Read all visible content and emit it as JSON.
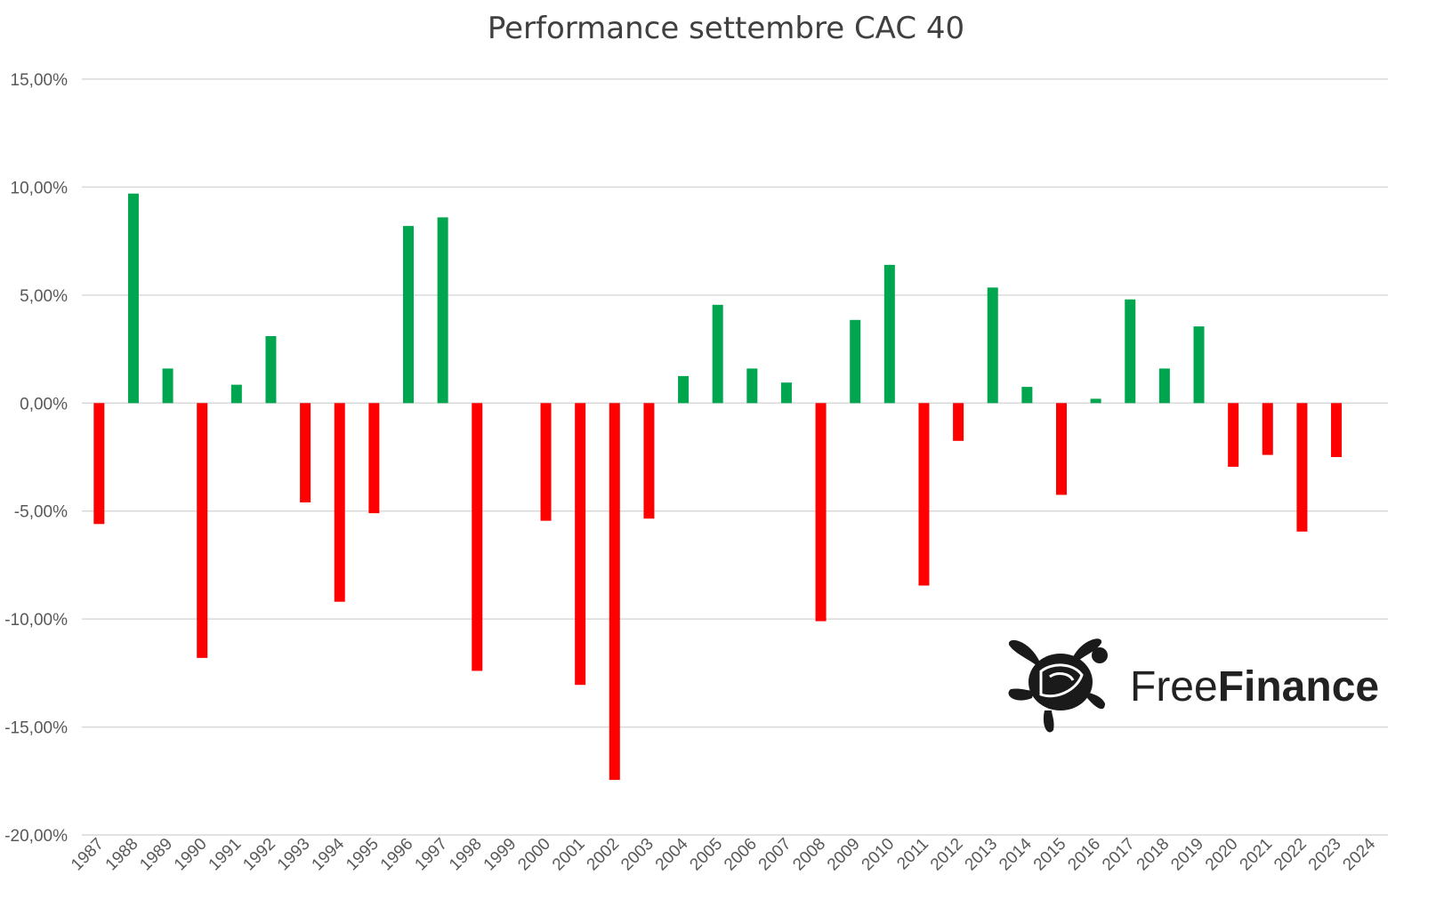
{
  "chart_data": {
    "type": "bar",
    "title": "Performance settembre CAC 40",
    "xlabel": "",
    "ylabel": "",
    "ylim": [
      -20,
      15
    ],
    "ytick_values": [
      15,
      10,
      5,
      0,
      -5,
      -10,
      -15,
      -20
    ],
    "ytick_labels": [
      "15,00%",
      "10,00%",
      "5,00%",
      "0,00%",
      "-5,00%",
      "-10,00%",
      "-15,00%",
      "-20,00%"
    ],
    "grid": true,
    "legend": "none",
    "categories": [
      "1987",
      "1988",
      "1989",
      "1990",
      "1991",
      "1992",
      "1993",
      "1994",
      "1995",
      "1996",
      "1997",
      "1998",
      "1999",
      "2000",
      "2001",
      "2002",
      "2003",
      "2004",
      "2005",
      "2006",
      "2007",
      "2008",
      "2009",
      "2010",
      "2011",
      "2012",
      "2013",
      "2014",
      "2015",
      "2016",
      "2017",
      "2018",
      "2019",
      "2020",
      "2021",
      "2022",
      "2023",
      "2024"
    ],
    "values": [
      -5.6,
      9.7,
      1.6,
      -11.8,
      0.85,
      3.1,
      -4.6,
      -9.2,
      -5.1,
      8.2,
      8.6,
      -12.4,
      0,
      -5.45,
      -13.05,
      -17.45,
      -5.35,
      1.25,
      4.55,
      1.6,
      0.95,
      -10.1,
      3.85,
      6.4,
      -8.45,
      -1.75,
      5.35,
      0.75,
      -4.25,
      0.2,
      4.8,
      1.6,
      3.55,
      -2.95,
      -2.4,
      -5.95,
      -2.5,
      0
    ],
    "colors": {
      "positive": "#00a64f",
      "negative": "#ff0000",
      "grid": "#d9d9d9",
      "text": "#595959",
      "title": "#404040"
    }
  },
  "logo": {
    "word1": "Free",
    "word2": "Finance",
    "icon": "turtle-icon"
  }
}
